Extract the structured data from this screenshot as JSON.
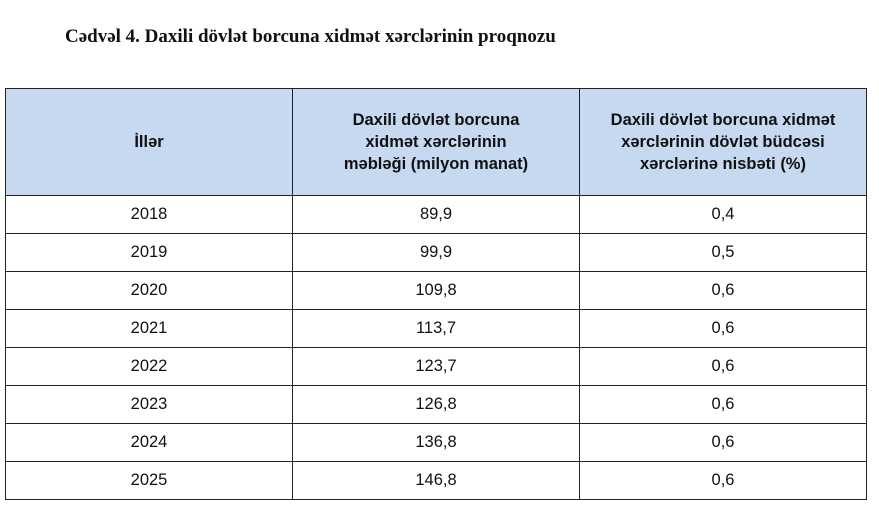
{
  "title": "Cədvəl 4. Daxili dövlət borcuna xidmət xərclərinin proqnozu",
  "table": {
    "headers": [
      "İllər",
      "Daxili dövlət borcuna xidmət xərclərinin məbləği (milyon manat)",
      "Daxili dövlət borcuna xidmət xərclərinin dövlət büdcəsi xərclərinə nisbəti (%)"
    ],
    "rows": [
      [
        "2018",
        "89,9",
        "0,4"
      ],
      [
        "2019",
        "99,9",
        "0,5"
      ],
      [
        "2020",
        "109,8",
        "0,6"
      ],
      [
        "2021",
        "113,7",
        "0,6"
      ],
      [
        "2022",
        "123,7",
        "0,6"
      ],
      [
        "2023",
        "126,8",
        "0,6"
      ],
      [
        "2024",
        "136,8",
        "0,6"
      ],
      [
        "2025",
        "146,8",
        "0,6"
      ]
    ]
  },
  "colors": {
    "header_bg": "#c6d9f1"
  }
}
